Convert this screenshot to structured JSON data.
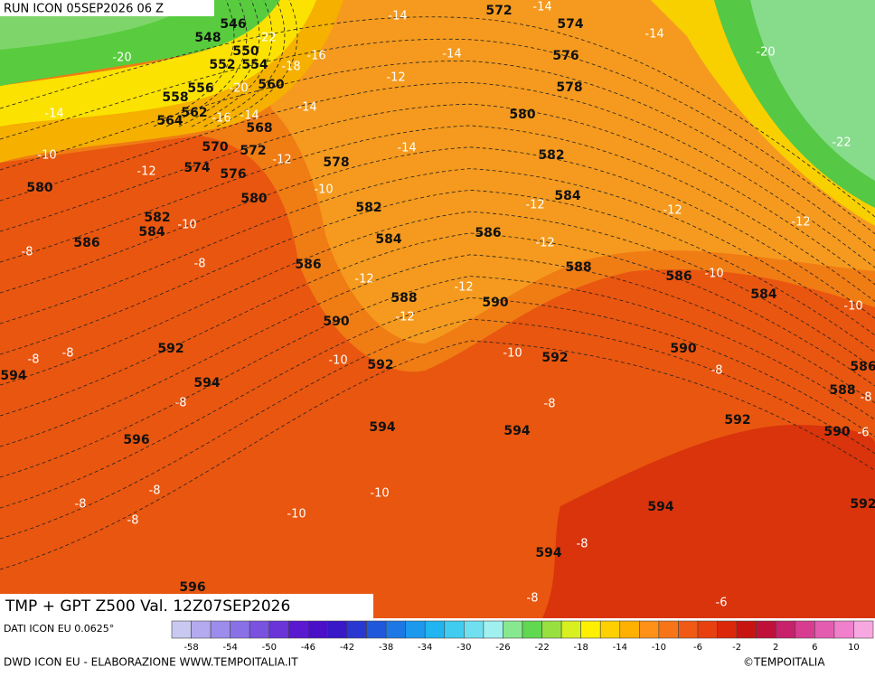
{
  "header": {
    "run": "RUN ICON 05SEP2026 06 Z"
  },
  "title": "TMP + GPT Z500 Val. 12Z07SEP2026",
  "contours": {
    "gpt": [
      546,
      548,
      550,
      552,
      554,
      556,
      558,
      560,
      562,
      564,
      568,
      570,
      572,
      574,
      576,
      578,
      580,
      580,
      580,
      582,
      582,
      582,
      584,
      584,
      584,
      584,
      586,
      586,
      586,
      586,
      586,
      588,
      588,
      588,
      590,
      590,
      590,
      590,
      592,
      592,
      592,
      592,
      592,
      594,
      594,
      594,
      594,
      594,
      594,
      596,
      596,
      572,
      574,
      576,
      578
    ],
    "tmp": [
      -14,
      -14,
      -22,
      -16,
      -20,
      -18,
      -12,
      -20,
      -14,
      -16,
      -14,
      -14,
      -14,
      -14,
      -20,
      -22,
      -10,
      -12,
      -12,
      -14,
      -10,
      -12,
      -12,
      -12,
      -10,
      -12,
      -8,
      -8,
      -12,
      -12,
      -10,
      -10,
      -12,
      -8,
      -8,
      -10,
      -10,
      -8,
      -8,
      -8,
      -8,
      -6,
      -8,
      -8,
      -8,
      -10,
      -10,
      -8,
      -8,
      -6
    ]
  },
  "legend": {
    "ticks": [
      -58,
      -54,
      -50,
      -46,
      -42,
      -38,
      -34,
      -30,
      -26,
      -22,
      -18,
      -14,
      -10,
      -6,
      -2,
      2,
      6,
      10
    ]
  },
  "footer": {
    "data": "DATI ICON EU 0.0625°",
    "source": "DWD ICON EU - ELABORAZIONE WWW.TEMPOITALIA.IT",
    "copyright": "©TEMPOITALIA"
  }
}
